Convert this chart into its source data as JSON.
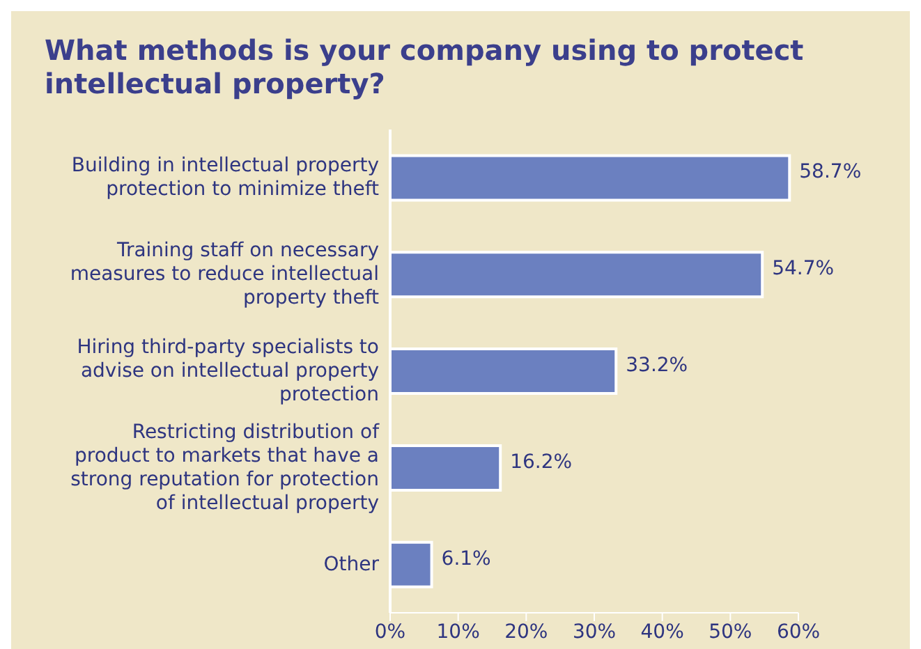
{
  "chart_data": {
    "type": "bar",
    "orientation": "horizontal",
    "title": "What methods is your company using to protect intellectual property?",
    "categories": [
      "Building in intellectual property protection to minimize theft",
      "Training staff on necessary measures to reduce intellectual property theft",
      "Hiring third-party specialists to advise on intellectual property protection",
      "Restricting distribution of product to markets that have a strong reputation for protection of intellectual property",
      "Other"
    ],
    "values": [
      58.7,
      54.7,
      33.2,
      16.2,
      6.1
    ],
    "value_labels": [
      "58.7%",
      "54.7%",
      "33.2%",
      "16.2%",
      "6.1%"
    ],
    "color": "#6b80c0",
    "xlim": [
      0,
      60
    ],
    "xticks": [
      {
        "value": 0,
        "label": "0%"
      },
      {
        "value": 10,
        "label": "10%"
      },
      {
        "value": 20,
        "label": "20%"
      },
      {
        "value": 30,
        "label": "30%"
      },
      {
        "value": 40,
        "label": "40%"
      },
      {
        "value": 50,
        "label": "50%"
      },
      {
        "value": 60,
        "label": "60%"
      }
    ],
    "grid": false,
    "legend": false
  }
}
